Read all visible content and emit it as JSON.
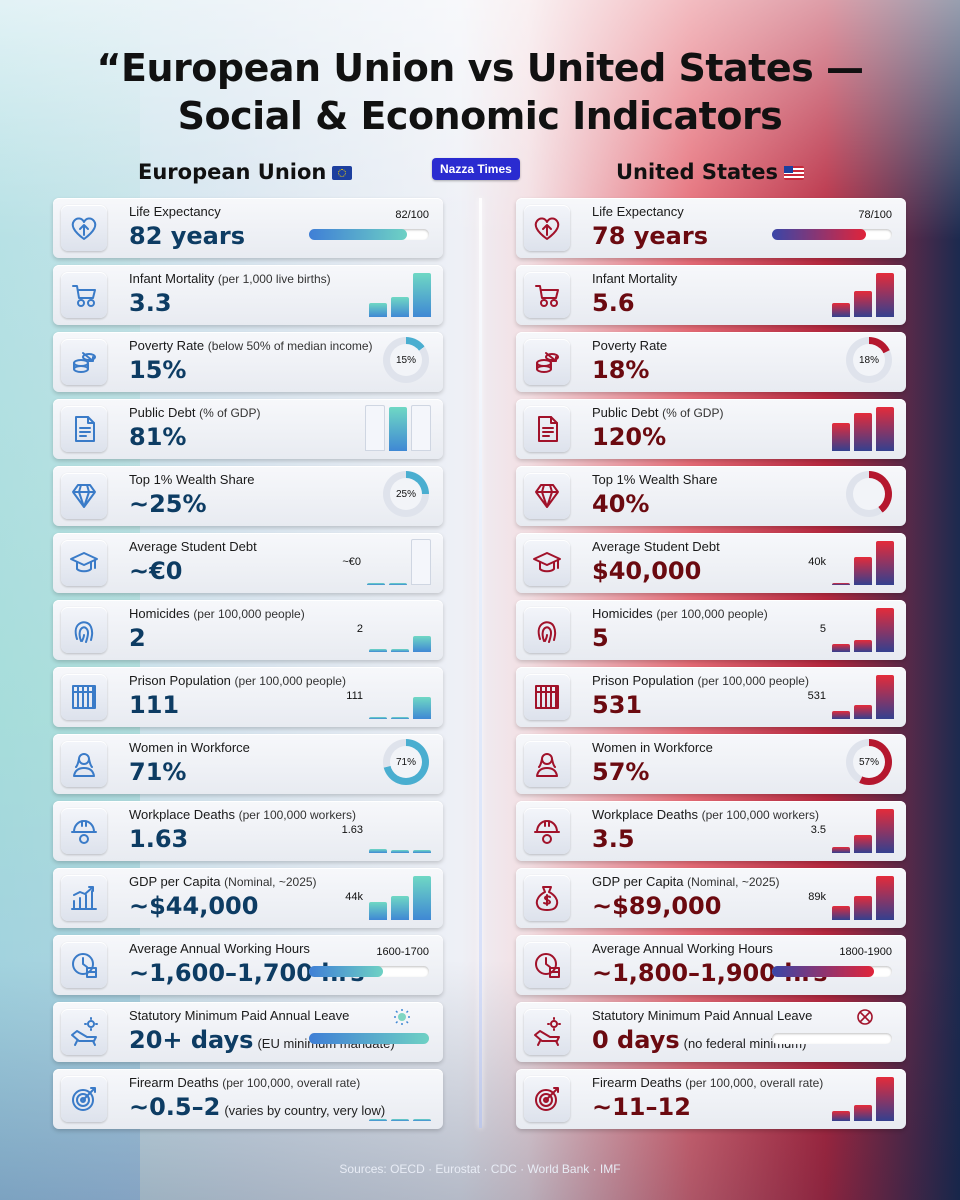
{
  "title_line1": "“European Union vs United States —",
  "title_line2": "Social & Economic Indicators",
  "badge": "Nazza Times",
  "eu": {
    "heading": "European Union",
    "items": [
      {
        "label": "Life Expectancy",
        "sub": "",
        "value": "82 years",
        "note": "",
        "visual": "progress",
        "progress": 0.82,
        "vtext": "82/100",
        "icon": "heart-icon"
      },
      {
        "label": "Infant Mortality",
        "sub": "(per 1,000 live births)",
        "value": "3.3",
        "note": "",
        "visual": "bars",
        "vtext": "",
        "icon": "stroller-icon"
      },
      {
        "label": "Poverty Rate",
        "sub": "(below 50% of median income)",
        "value": "15%",
        "note": "",
        "visual": "donut",
        "progress": 0.15,
        "vtext": "15%",
        "icon": "coins-icon"
      },
      {
        "label": "Public Debt",
        "sub": "(% of GDP)",
        "value": "81%",
        "note": "",
        "visual": "bars",
        "vtext": "",
        "icon": "document-icon"
      },
      {
        "label": "Top 1% Wealth Share",
        "sub": "",
        "value": "~25%",
        "note": "",
        "visual": "donut",
        "progress": 0.25,
        "vtext": "25%",
        "icon": "diamond-icon"
      },
      {
        "label": "Average Student Debt",
        "sub": "",
        "value": "~€0",
        "note": "",
        "visual": "bars",
        "vtext": "~€0",
        "icon": "graduation-cap-icon"
      },
      {
        "label": "Homicides",
        "sub": "(per 100,000 people)",
        "value": "2",
        "note": "",
        "visual": "bars",
        "vtext": "2",
        "icon": "fingerprint-icon"
      },
      {
        "label": "Prison Population",
        "sub": "(per 100,000 people)",
        "value": "111",
        "note": "",
        "visual": "bars",
        "vtext": "111",
        "icon": "prison-bars-icon"
      },
      {
        "label": "Women in Workforce",
        "sub": "",
        "value": "71%",
        "note": "",
        "visual": "donut",
        "progress": 0.71,
        "vtext": "71%",
        "icon": "woman-icon"
      },
      {
        "label": "Workplace Deaths",
        "sub": "(per 100,000 workers)",
        "value": "1.63",
        "note": "",
        "visual": "bars",
        "vtext": "1.63",
        "icon": "hard-hat-icon"
      },
      {
        "label": "GDP per Capita",
        "sub": "(Nominal, ~2025)",
        "value": "~$44,000",
        "note": "",
        "visual": "bars",
        "vtext": "44k",
        "icon": "growth-chart-icon"
      },
      {
        "label": "Average Annual Working Hours",
        "sub": "",
        "value": "~1,600–1,700 hrs",
        "note": "",
        "visual": "progress",
        "progress": 0.62,
        "vtext": "1600-1700",
        "icon": "clock-icon"
      },
      {
        "label": "Statutory Minimum Paid Annual Leave",
        "sub": "",
        "value": "20+ days",
        "note": "(EU minimum mandate)",
        "visual": "progress",
        "progress": 1.0,
        "vtext": "",
        "icon": "lounge-chair-icon"
      },
      {
        "label": "Firearm Deaths",
        "sub": "(per 100,000, overall rate)",
        "value": "~0.5–2",
        "note": "(varies by country, very low)",
        "visual": "bars",
        "vtext": "",
        "icon": "target-icon"
      }
    ]
  },
  "us": {
    "heading": "United States",
    "items": [
      {
        "label": "Life Expectancy",
        "sub": "",
        "value": "78 years",
        "note": "",
        "visual": "progress",
        "progress": 0.78,
        "vtext": "78/100",
        "icon": "heart-icon"
      },
      {
        "label": "Infant Mortality",
        "sub": "",
        "value": "5.6",
        "note": "",
        "visual": "bars",
        "vtext": "",
        "icon": "stroller-icon"
      },
      {
        "label": "Poverty Rate",
        "sub": "",
        "value": "18%",
        "note": "",
        "visual": "donut",
        "progress": 0.18,
        "vtext": "18%",
        "icon": "coins-icon"
      },
      {
        "label": "Public Debt",
        "sub": "(% of GDP)",
        "value": "120%",
        "note": "",
        "visual": "bars",
        "vtext": "",
        "icon": "document-icon"
      },
      {
        "label": "Top 1% Wealth Share",
        "sub": "",
        "value": "40%",
        "note": "",
        "visual": "donut",
        "progress": 0.4,
        "vtext": "",
        "icon": "diamond-icon"
      },
      {
        "label": "Average Student Debt",
        "sub": "",
        "value": "$40,000",
        "note": "",
        "visual": "bars",
        "vtext": "40k",
        "icon": "graduation-cap-icon"
      },
      {
        "label": "Homicides",
        "sub": "(per 100,000 people)",
        "value": "5",
        "note": "",
        "visual": "bars",
        "vtext": "5",
        "icon": "fingerprint-icon"
      },
      {
        "label": "Prison Population",
        "sub": "(per 100,000 people)",
        "value": "531",
        "note": "",
        "visual": "bars",
        "vtext": "531",
        "icon": "prison-bars-icon"
      },
      {
        "label": "Women in Workforce",
        "sub": "",
        "value": "57%",
        "note": "",
        "visual": "donut",
        "progress": 0.57,
        "vtext": "57%",
        "icon": "woman-icon"
      },
      {
        "label": "Workplace Deaths",
        "sub": "(per 100,000 workers)",
        "value": "3.5",
        "note": "",
        "visual": "bars",
        "vtext": "3.5",
        "icon": "hard-hat-icon"
      },
      {
        "label": "GDP per Capita",
        "sub": "(Nominal, ~2025)",
        "value": "~$89,000",
        "note": "",
        "visual": "bars",
        "vtext": "89k",
        "icon": "money-bag-icon"
      },
      {
        "label": "Average Annual Working Hours",
        "sub": "",
        "value": "~1,800–1,900 hrs",
        "note": "",
        "visual": "progress",
        "progress": 0.85,
        "vtext": "1800-1900",
        "icon": "clock-icon"
      },
      {
        "label": "Statutory Minimum Paid Annual Leave",
        "sub": "",
        "value": "0 days",
        "note": "(no federal minimum)",
        "visual": "progress",
        "progress": 0.0,
        "vtext": "",
        "icon": "lounge-chair-icon"
      },
      {
        "label": "Firearm Deaths",
        "sub": "(per 100,000, overall rate)",
        "value": "~11–12",
        "note": "",
        "visual": "bars",
        "vtext": "",
        "icon": "target-icon"
      }
    ]
  },
  "sources": "Sources: OECD · Eurostat · CDC · World Bank · IMF",
  "colors": {
    "eu_accent": "#3f88d4",
    "eu_teal": "#6fd8c4",
    "us_accent": "#e0243a",
    "us_navy": "#34408f",
    "badge": "#2a2bd0"
  }
}
